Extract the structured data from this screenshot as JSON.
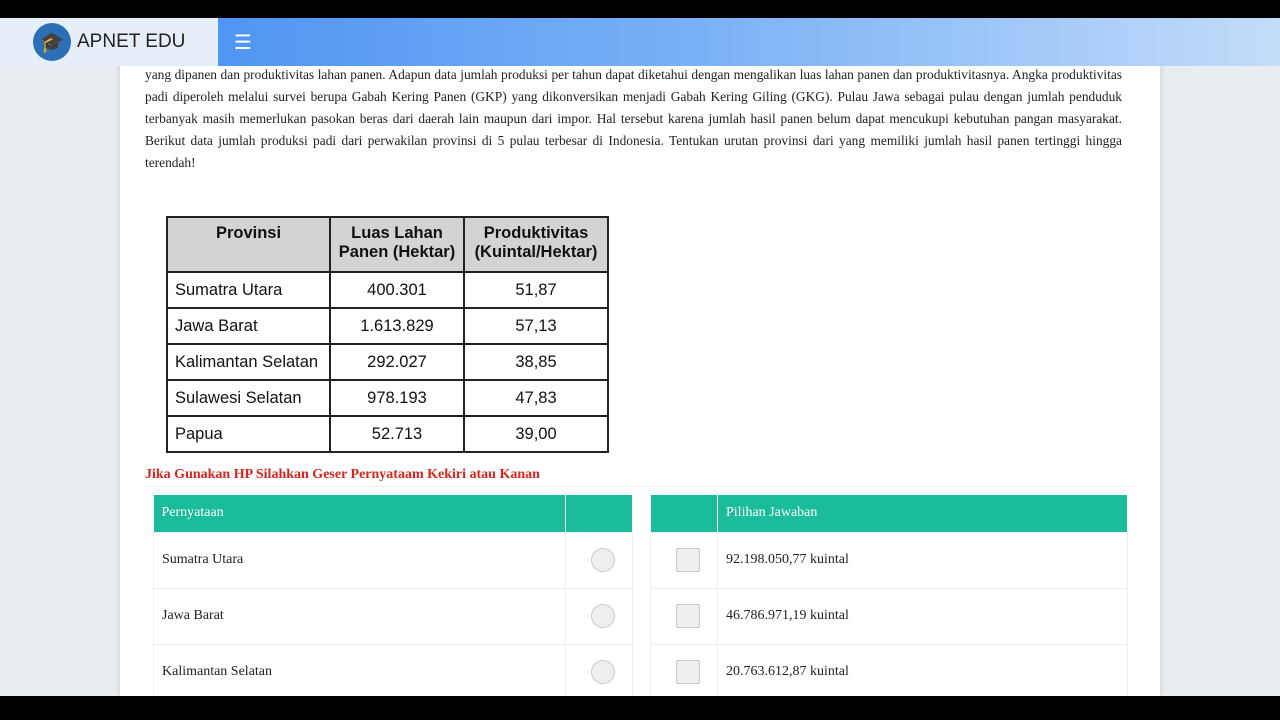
{
  "header": {
    "brand": "APNET EDU",
    "menu_icon": "hamburger-icon",
    "logo_icon": "graduation-cap-icon"
  },
  "paragraph": "yang dipanen dan produktivitas lahan panen. Adapun data jumlah produksi per tahun dapat diketahui dengan mengalikan luas lahan panen dan produktivitasnya. Angka produktivitas padi diperoleh melalui survei berupa Gabah Kering Panen (GKP) yang dikonversikan menjadi Gabah Kering Giling (GKG). Pulau Jawa sebagai pulau dengan jumlah penduduk terbanyak masih memerlukan pasokan beras dari daerah lain maupun dari impor. Hal tersebut karena jumlah hasil panen belum dapat mencukupi kebutuhan pangan masyarakat. Berikut data jumlah produksi padi dari perwakilan provinsi di 5 pulau terbesar di Indonesia. Tentukan urutan provinsi dari yang memiliki jumlah hasil panen tertinggi hingga terendah!",
  "data_table": {
    "headers": [
      "Provinsi",
      "Luas Lahan Panen (Hektar)",
      "Produktivitas (Kuintal/Hektar)"
    ],
    "rows": [
      [
        "Sumatra Utara",
        "400.301",
        "51,87"
      ],
      [
        "Jawa Barat",
        "1.613.829",
        "57,13"
      ],
      [
        "Kalimantan Selatan",
        "292.027",
        "38,85"
      ],
      [
        "Sulawesi Selatan",
        "978.193",
        "47,83"
      ],
      [
        "Papua",
        "52.713",
        "39,00"
      ]
    ]
  },
  "note": "Jika Gunakan HP Silahkan Geser Pernyataam Kekiri atau Kanan",
  "left_table": {
    "header": "Pernyataan",
    "rows": [
      "Sumatra Utara",
      "Jawa Barat",
      "Kalimantan Selatan"
    ]
  },
  "right_table": {
    "header": "Pilihan Jawaban",
    "rows": [
      "92.198.050,77 kuintal",
      "46.786.971,19 kuintal",
      "20.763.612,87 kuintal"
    ]
  },
  "colors": {
    "accent": "#1abc9c",
    "note": "#d9241c"
  }
}
